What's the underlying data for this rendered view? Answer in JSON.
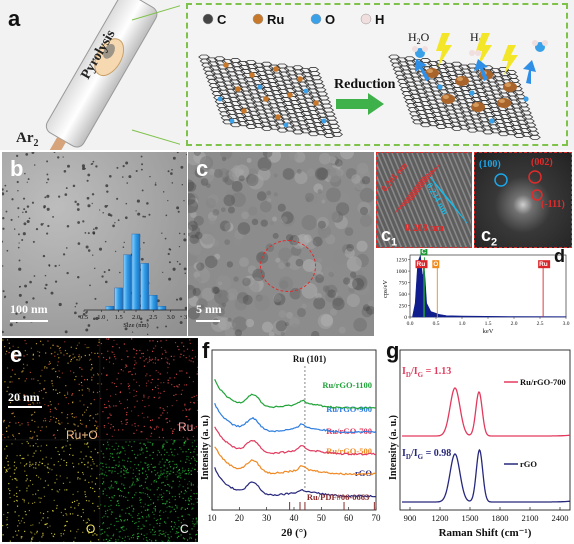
{
  "panel_a": {
    "label": "a",
    "tube_text": "Pyrolysis",
    "gas": "Ar",
    "gas_sub": "2",
    "legend": [
      {
        "symbol": "C",
        "color": "#454545"
      },
      {
        "symbol": "Ru",
        "color": "#c8782a"
      },
      {
        "symbol": "O",
        "color": "#3aa0e8"
      },
      {
        "symbol": "H",
        "color": "#f1dede"
      }
    ],
    "arrow_text": "Reduction",
    "h2o_main": "H",
    "h2o_sub": "2",
    "h2o_tail": "O",
    "h2_main": "H",
    "h2_sub": "2"
  },
  "panel_b": {
    "label": "b",
    "scalebar": "100 nm",
    "histogram": {
      "type": "bar",
      "xlabel": "Size (nm)",
      "ticks": [
        "0.5",
        "1.0",
        "1.5",
        "2.0",
        "2.5",
        "3.0",
        "3.5"
      ],
      "xlim": [
        0.5,
        3.5
      ],
      "bins": [
        1.25,
        1.5,
        1.75,
        2.0,
        2.25,
        2.5,
        2.75
      ],
      "values": [
        3,
        18,
        45,
        62,
        38,
        12,
        3
      ],
      "bar_color": "#2f9be6"
    }
  },
  "panel_c": {
    "label": "c",
    "scalebar": "5 nm",
    "c1_label": "c",
    "c1_sub": "1",
    "c1_spacing_1": "0.205 nm",
    "c1_spacing_2": "0.234 nm",
    "c1_spacing_3": "0.208 nm",
    "c2_label": "c",
    "c2_sub": "2",
    "c2_spot_1": "(100)",
    "c2_spot_2": "(002)",
    "c2_spot_3": "(-111)"
  },
  "panel_d": {
    "label": "d",
    "chart_data": {
      "type": "line",
      "ylabel": "cps/eV",
      "xlabel": "keV",
      "xlim": [
        0,
        3.0
      ],
      "ylim": [
        0,
        1350
      ],
      "xticks": [
        "0.0",
        "0.5",
        "1.0",
        "1.5",
        "2.0",
        "2.5",
        "3.0"
      ],
      "yticks": [
        "0",
        "250",
        "500",
        "750",
        "1000",
        "1250"
      ],
      "peaks": [
        {
          "label": "C",
          "x": 0.277,
          "y": 1300,
          "color": "#1f9a3a"
        },
        {
          "label": "Ru",
          "x": 0.26,
          "y": 1150,
          "color": "#d9262b"
        },
        {
          "label": "O",
          "x": 0.525,
          "y": 1150,
          "color": "#ef8a1c"
        },
        {
          "label": "Ru",
          "x": 2.56,
          "y": 1150,
          "color": "#d9262b"
        }
      ]
    }
  },
  "panel_e": {
    "label": "e",
    "scalebar": "20 nm",
    "map_1": "Ru+O",
    "map_2": "Ru",
    "map_3": "O",
    "map_4": "C"
  },
  "panel_f": {
    "label": "f",
    "chart_data": {
      "type": "line",
      "xlabel": "2θ (°)",
      "ylabel": "Intensity (a. u.)",
      "xlim": [
        10,
        70
      ],
      "xticks": [
        "10",
        "20",
        "30",
        "40",
        "50",
        "60",
        "70"
      ],
      "annotation": "Ru (101)",
      "reference_line_x": 44,
      "reference_label": "Ru/PDF#06-0663",
      "reference_peaks": [
        38.4,
        42.2,
        44.0,
        58.3,
        69.4
      ],
      "series": [
        {
          "name": "Ru/rGO-1100",
          "color": "#21a33a",
          "offset": 4
        },
        {
          "name": "Ru/rGO-900",
          "color": "#2e7de0",
          "offset": 3
        },
        {
          "name": "Ru/rGO-700",
          "color": "#e23a5e",
          "offset": 2
        },
        {
          "name": "Ru/rGO-500",
          "color": "#f08a24",
          "offset": 1
        },
        {
          "name": "rGO",
          "color": "#27287c",
          "offset": 0
        }
      ]
    }
  },
  "panel_g": {
    "label": "g",
    "chart_data": {
      "type": "line",
      "xlabel": "Raman Shift (cm⁻¹)",
      "ylabel": "Intensity (a. u.)",
      "xlim": [
        800,
        2500
      ],
      "xticks": [
        "900",
        "1200",
        "1500",
        "1800",
        "2100",
        "2400"
      ],
      "series": [
        {
          "name": "Ru/rGO-700",
          "color": "#e23a5e",
          "ratio_text": "1.13",
          "D_peak": 1350,
          "G_peak": 1590
        },
        {
          "name": "rGO",
          "color": "#27287c",
          "ratio_text": "0.98",
          "D_peak": 1350,
          "G_peak": 1595
        }
      ],
      "ratio_prefix_main": "I",
      "ratio_prefix_sub": "D",
      "ratio_slash": "/I",
      "ratio_denom_sub": "G",
      "ratio_eq": " = "
    }
  }
}
